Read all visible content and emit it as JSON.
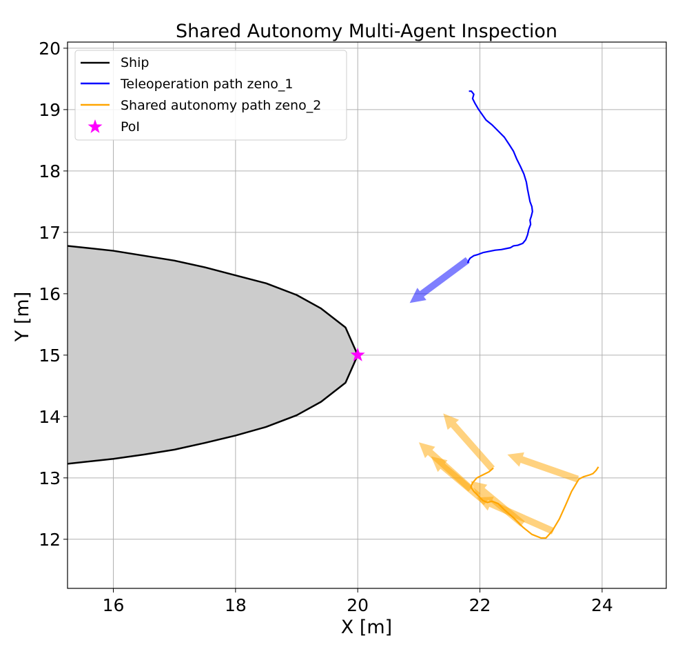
{
  "chart_data": {
    "type": "line",
    "title": "Shared Autonomy Multi-Agent Inspection",
    "xlabel": "X [m]",
    "ylabel": "Y [m]",
    "xlim": [
      15.25,
      25.05
    ],
    "ylim": [
      11.2,
      20.1
    ],
    "xticks": [
      "16",
      "18",
      "20",
      "22",
      "24"
    ],
    "yticks": [
      "12",
      "13",
      "14",
      "15",
      "16",
      "17",
      "18",
      "19",
      "20"
    ],
    "grid": true,
    "legend_placement": "upper-left",
    "colors": {
      "ship_line": "#000000",
      "ship_fill": "#cccccc",
      "teleop": "#0000ff",
      "shared": "#ffa500",
      "poi": "#ff00ff",
      "grid": "#b0b0b0"
    },
    "series": [
      {
        "name": "Ship",
        "color": "#000000",
        "fill": "#cccccc",
        "x": [
          15.25,
          16.0,
          16.5,
          17.0,
          17.5,
          18.0,
          18.5,
          19.0,
          19.4,
          19.8,
          20.0,
          19.8,
          19.4,
          19.0,
          18.5,
          18.0,
          17.5,
          17.0,
          16.5,
          16.0,
          15.25
        ],
        "y": [
          16.78,
          16.7,
          16.62,
          16.54,
          16.43,
          16.3,
          16.17,
          15.98,
          15.76,
          15.45,
          15.0,
          14.55,
          14.24,
          14.02,
          13.83,
          13.69,
          13.57,
          13.46,
          13.38,
          13.31,
          13.23
        ]
      },
      {
        "name": "Teleoperation path zeno_1",
        "color": "#0000ff",
        "x": [
          21.82,
          21.86,
          21.9,
          21.88,
          21.92,
          21.98,
          22.05,
          22.1,
          22.2,
          22.3,
          22.4,
          22.48,
          22.55,
          22.6,
          22.66,
          22.72,
          22.76,
          22.78,
          22.8,
          22.82,
          22.85,
          22.86,
          22.84,
          22.82,
          22.83,
          22.8,
          22.78,
          22.75,
          22.7,
          22.62,
          22.55,
          22.5,
          22.45,
          22.35,
          22.25,
          22.15,
          22.05,
          21.97,
          21.9,
          21.84,
          21.82,
          21.8
        ],
        "y": [
          19.3,
          19.3,
          19.25,
          19.18,
          19.1,
          19.0,
          18.9,
          18.83,
          18.75,
          18.65,
          18.55,
          18.43,
          18.32,
          18.2,
          18.08,
          17.95,
          17.82,
          17.7,
          17.6,
          17.5,
          17.42,
          17.34,
          17.26,
          17.2,
          17.13,
          17.05,
          16.96,
          16.88,
          16.82,
          16.79,
          16.78,
          16.75,
          16.74,
          16.72,
          16.71,
          16.69,
          16.67,
          16.64,
          16.62,
          16.58,
          16.55,
          16.5
        ]
      },
      {
        "name": "Shared autonomy path zeno_2",
        "color": "#ffa500",
        "x": [
          23.94,
          23.9,
          23.85,
          23.8,
          23.7,
          23.62,
          23.5,
          23.4,
          23.3,
          23.18,
          23.08,
          23.0,
          22.85,
          22.7,
          22.55,
          22.4,
          22.3,
          22.2,
          22.12,
          22.05,
          21.98,
          21.9,
          21.85,
          21.88,
          21.95,
          22.05,
          22.15,
          22.22
        ],
        "y": [
          13.18,
          13.12,
          13.07,
          13.05,
          13.02,
          12.98,
          12.78,
          12.55,
          12.33,
          12.13,
          12.02,
          12.02,
          12.08,
          12.2,
          12.35,
          12.48,
          12.58,
          12.62,
          12.6,
          12.63,
          12.7,
          12.78,
          12.85,
          12.92,
          13.0,
          13.05,
          13.1,
          13.16
        ]
      },
      {
        "name": "PoI",
        "color": "#ff00ff",
        "x": [
          20.0
        ],
        "y": [
          15.0
        ]
      }
    ],
    "arrows": [
      {
        "series": "Teleoperation path zeno_1",
        "x": 21.8,
        "y": 16.55,
        "x2": 20.85,
        "y2": 15.85
      },
      {
        "series": "Shared autonomy path zeno_2",
        "x": 22.2,
        "y": 13.15,
        "x2": 21.4,
        "y2": 14.05
      },
      {
        "series": "Shared autonomy path zeno_2",
        "x": 23.6,
        "y": 12.98,
        "x2": 22.45,
        "y2": 13.38
      },
      {
        "series": "Shared autonomy path zeno_2",
        "x": 21.85,
        "y": 12.82,
        "x2": 21.0,
        "y2": 13.58
      },
      {
        "series": "Shared autonomy path zeno_2",
        "x": 22.1,
        "y": 12.6,
        "x2": 21.2,
        "y2": 13.35
      },
      {
        "series": "Shared autonomy path zeno_2",
        "x": 23.2,
        "y": 12.13,
        "x2": 21.95,
        "y2": 12.68
      },
      {
        "series": "Shared autonomy path zeno_2",
        "x": 22.7,
        "y": 12.25,
        "x2": 21.85,
        "y2": 12.95
      }
    ]
  }
}
